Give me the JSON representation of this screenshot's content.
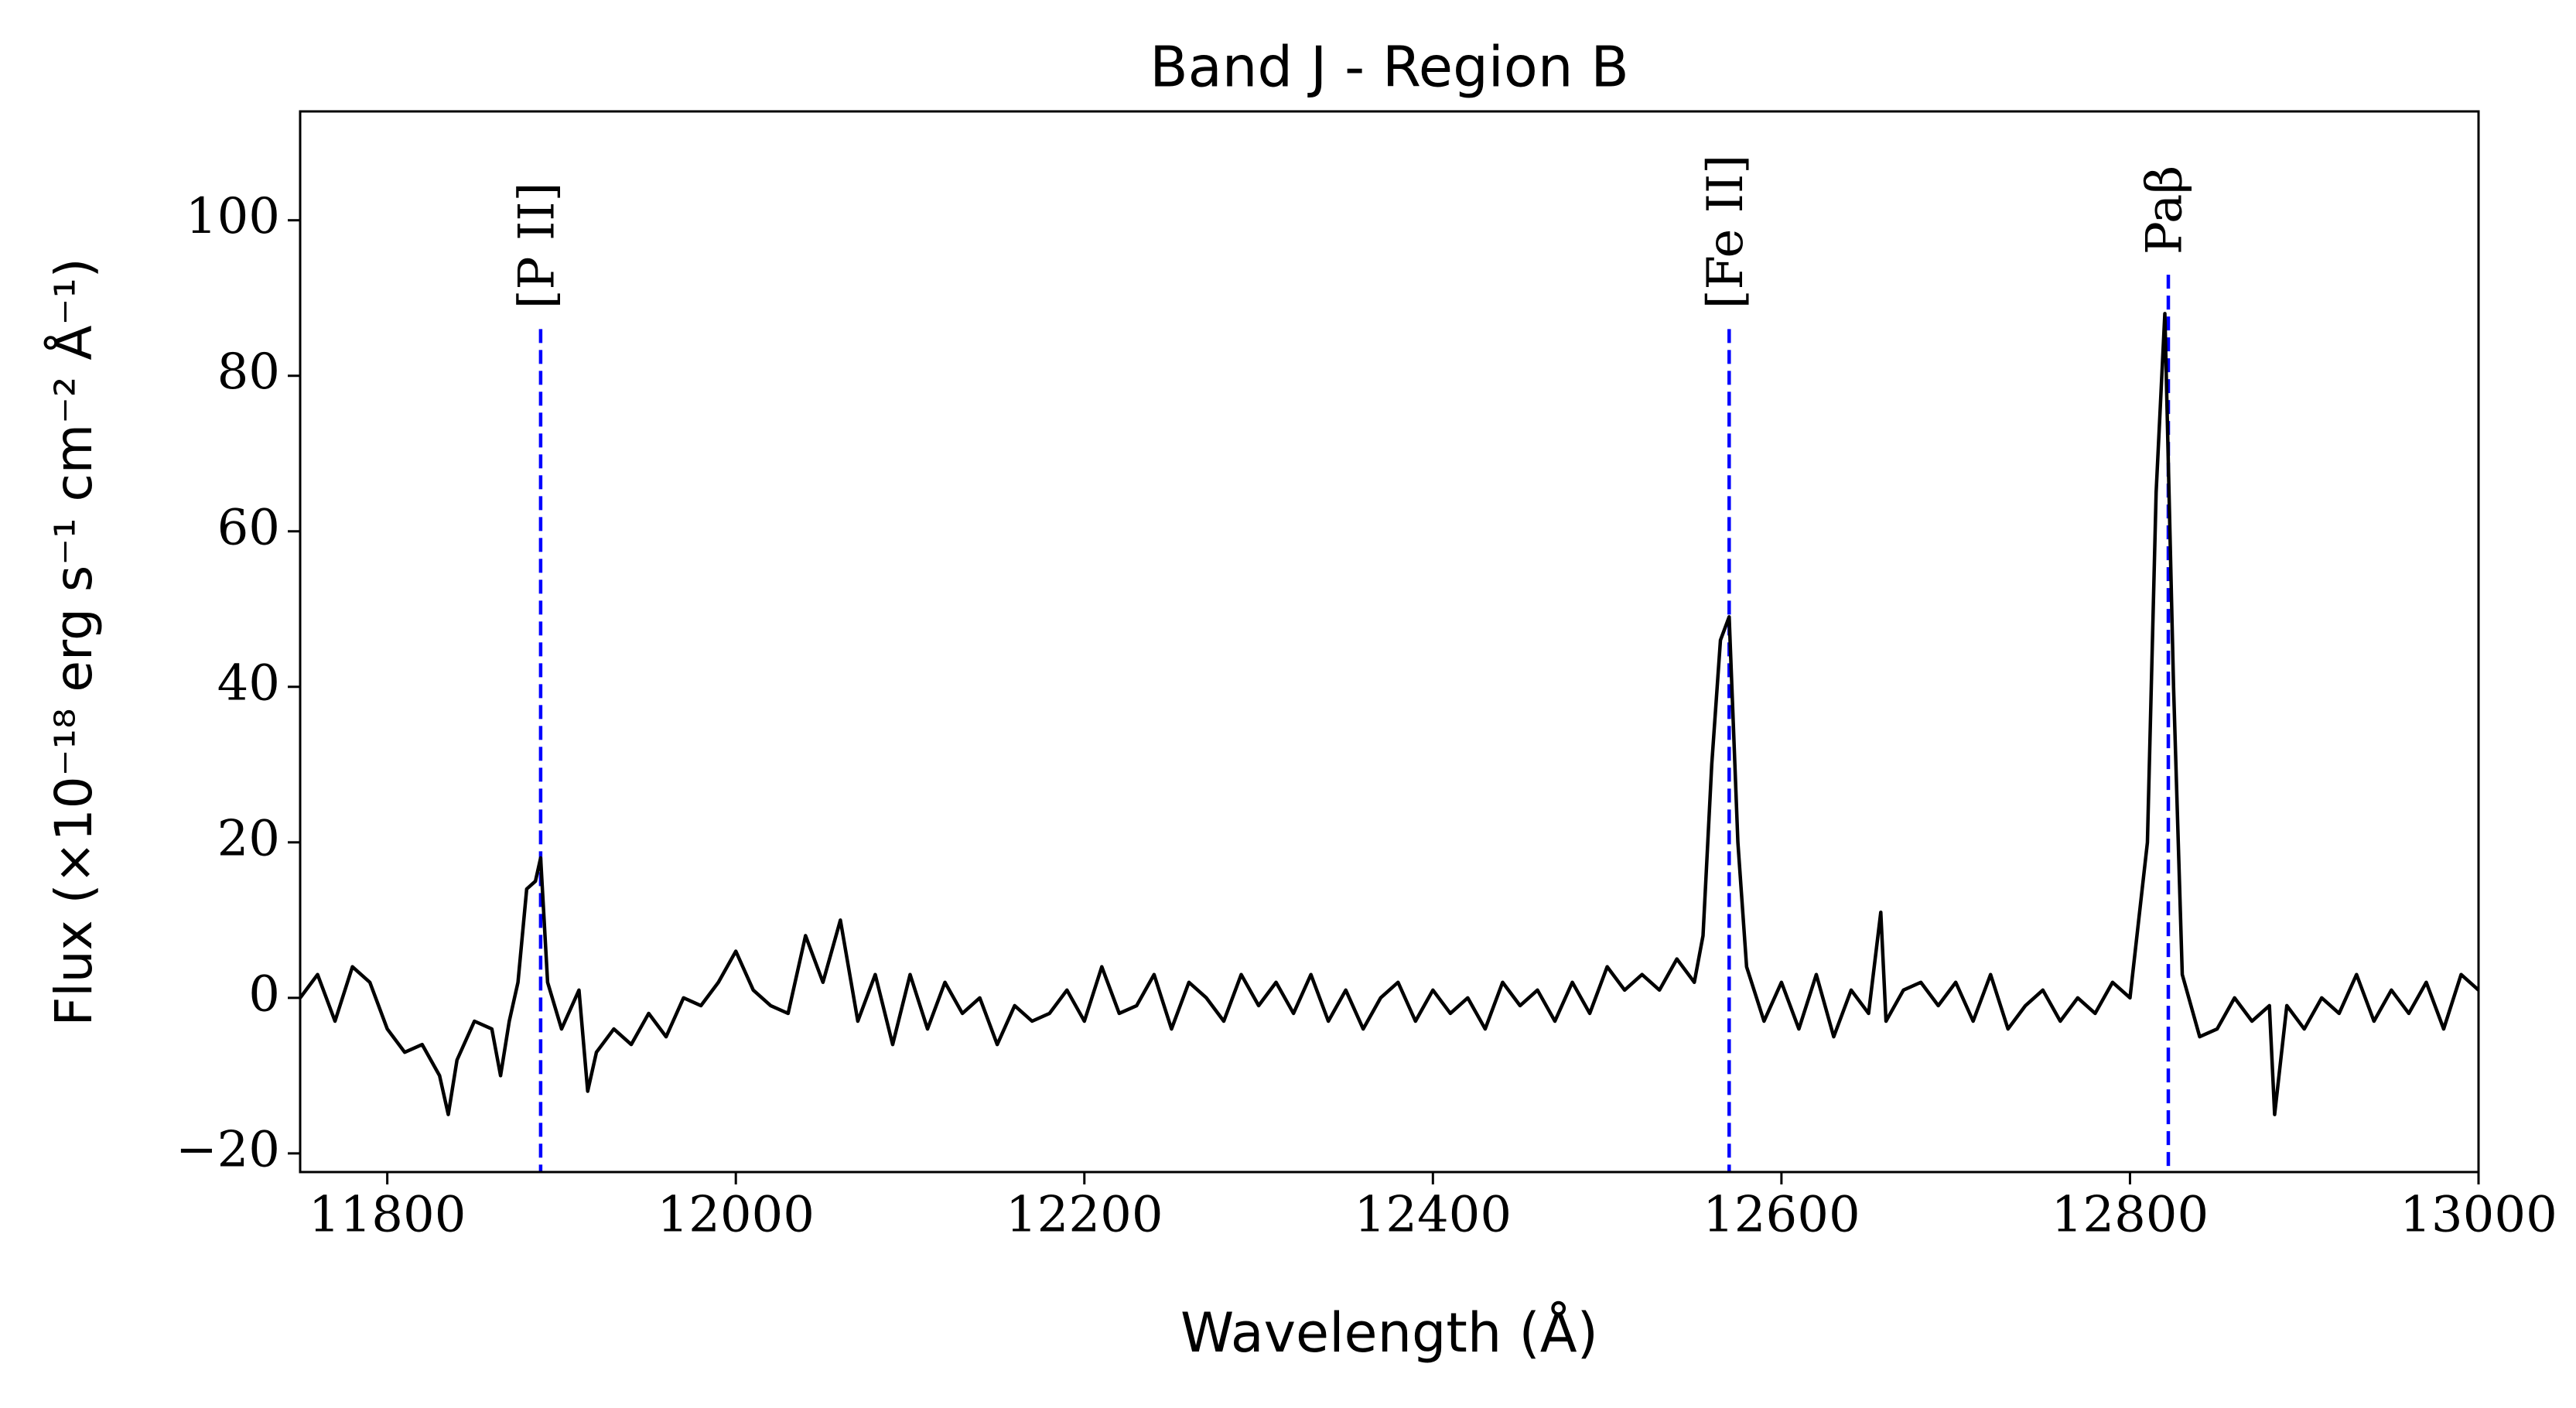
{
  "chart_data": {
    "type": "line",
    "title": "Band J - Region B",
    "x_label": "Wavelength (Å)",
    "y_label": "Flux (×10⁻¹⁸ erg s⁻¹ cm⁻² Å⁻¹)",
    "xlim": [
      11750,
      13000
    ],
    "ylim": [
      -22.4,
      114
    ],
    "xticks": [
      11800,
      12000,
      12200,
      12400,
      12600,
      12800,
      13000
    ],
    "yticks": [
      {
        "value": -20,
        "label": "−20"
      },
      0,
      20,
      40,
      60,
      80,
      100
    ],
    "grid": false,
    "x": [
      11750,
      11760,
      11770,
      11780,
      11790,
      11800,
      11810,
      11820,
      11830,
      11835,
      11840,
      11850,
      11860,
      11865,
      11870,
      11875,
      11880,
      11885,
      11888,
      11892,
      11900,
      11910,
      11915,
      11920,
      11930,
      11940,
      11950,
      11960,
      11970,
      11980,
      11990,
      12000,
      12010,
      12020,
      12030,
      12040,
      12050,
      12060,
      12070,
      12080,
      12090,
      12100,
      12110,
      12120,
      12130,
      12140,
      12150,
      12160,
      12170,
      12180,
      12190,
      12200,
      12210,
      12220,
      12230,
      12240,
      12250,
      12260,
      12270,
      12280,
      12290,
      12300,
      12310,
      12320,
      12330,
      12340,
      12350,
      12360,
      12370,
      12380,
      12390,
      12400,
      12410,
      12420,
      12430,
      12440,
      12450,
      12460,
      12470,
      12480,
      12490,
      12500,
      12510,
      12520,
      12530,
      12540,
      12550,
      12555,
      12560,
      12565,
      12570,
      12575,
      12580,
      12590,
      12600,
      12610,
      12620,
      12630,
      12640,
      12650,
      12657,
      12660,
      12670,
      12680,
      12690,
      12700,
      12710,
      12720,
      12730,
      12740,
      12750,
      12760,
      12770,
      12780,
      12790,
      12800,
      12810,
      12815,
      12820,
      12825,
      12830,
      12840,
      12850,
      12860,
      12870,
      12880,
      12883,
      12890,
      12900,
      12910,
      12920,
      12930,
      12940,
      12950,
      12960,
      12970,
      12980,
      12990,
      13000
    ],
    "series": [
      {
        "name": "Flux",
        "color": "#000000",
        "values": [
          0,
          3,
          -3,
          4,
          2,
          -4,
          -7,
          -6,
          -10,
          -15,
          -8,
          -3,
          -4,
          -10,
          -3,
          2,
          14,
          15,
          18,
          2,
          -4,
          1,
          -12,
          -7,
          -4,
          -6,
          -2,
          -5,
          0,
          -1,
          2,
          6,
          1,
          -1,
          -2,
          8,
          2,
          10,
          -3,
          3,
          -6,
          3,
          -4,
          2,
          -2,
          0,
          -6,
          -1,
          -3,
          -2,
          1,
          -3,
          4,
          -2,
          -1,
          3,
          -4,
          2,
          0,
          -3,
          3,
          -1,
          2,
          -2,
          3,
          -3,
          1,
          -4,
          0,
          2,
          -3,
          1,
          -2,
          0,
          -4,
          2,
          -1,
          1,
          -3,
          2,
          -2,
          4,
          1,
          3,
          1,
          5,
          2,
          8,
          30,
          46,
          49,
          20,
          4,
          -3,
          2,
          -4,
          3,
          -5,
          1,
          -2,
          11,
          -3,
          1,
          2,
          -1,
          2,
          -3,
          3,
          -4,
          -1,
          1,
          -3,
          0,
          -2,
          2,
          0,
          20,
          65,
          88,
          40,
          3,
          -5,
          -4,
          0,
          -3,
          -1,
          -15,
          -1,
          -4,
          0,
          -2,
          3,
          -3,
          1,
          -2,
          2,
          -4,
          3,
          1
        ]
      }
    ],
    "annotations": [
      {
        "text": "[P II]",
        "x": 11888,
        "y_top": 86,
        "color": "#0000ff"
      },
      {
        "text": "[Fe II]",
        "x": 12570,
        "y_top": 86,
        "color": "#0000ff"
      },
      {
        "text": "Paβ",
        "x": 12822,
        "y_top": 93,
        "color": "#0000ff"
      }
    ]
  }
}
